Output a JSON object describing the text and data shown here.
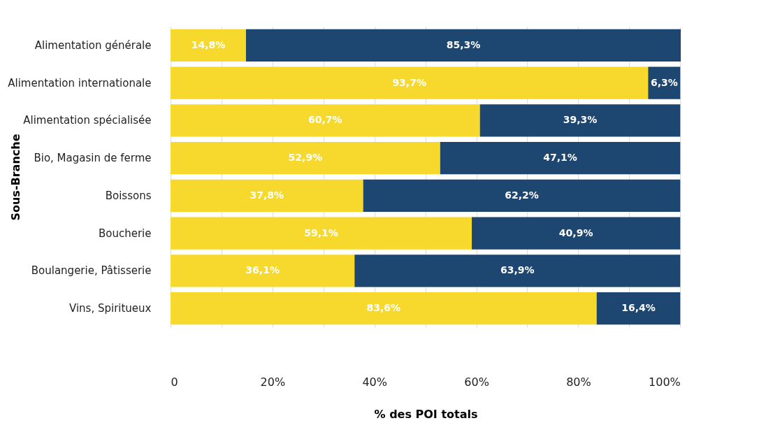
{
  "chart_data": {
    "type": "bar",
    "orientation": "horizontal",
    "stacked": true,
    "xlabel": "% des POI totals",
    "ylabel": "Sous-Branche",
    "categories": [
      "Alimentation générale",
      "Alimentation internationale",
      "Alimentation spécialisée",
      "Bio, Magasin de ferme",
      "Boissons",
      "Boucherie",
      "Boulangerie, Pâtisserie",
      "Vins, Spiritueux"
    ],
    "series": [
      {
        "color": "#f7d92e",
        "values": [
          14.8,
          93.7,
          60.7,
          52.9,
          37.8,
          59.1,
          36.1,
          83.6
        ],
        "value_labels": [
          "14,8%",
          "93,7%",
          "60,7%",
          "52,9%",
          "37,8%",
          "59,1%",
          "36,1%",
          "83,6%"
        ]
      },
      {
        "color": "#1d4670",
        "values": [
          85.3,
          6.3,
          39.3,
          47.1,
          62.2,
          40.9,
          63.9,
          16.4
        ],
        "value_labels": [
          "85,3%",
          "6,3%",
          "39,3%",
          "47,1%",
          "62,2%",
          "40,9%",
          "63,9%",
          "16,4%"
        ]
      }
    ],
    "xlim": [
      0,
      100.1
    ],
    "xticks": [
      0,
      {
        "value": 10,
        "label": null
      },
      {
        "value": 20,
        "label": "20%"
      },
      {
        "value": 30,
        "label": null
      },
      {
        "value": 40,
        "label": "40%"
      },
      {
        "value": 50,
        "label": null
      },
      {
        "value": 60,
        "label": "60%"
      },
      {
        "value": 70,
        "label": null
      },
      {
        "value": 80,
        "label": "80%"
      },
      {
        "value": 90,
        "label": null
      },
      {
        "value": 100,
        "label": "100%"
      }
    ],
    "grid": "x"
  }
}
